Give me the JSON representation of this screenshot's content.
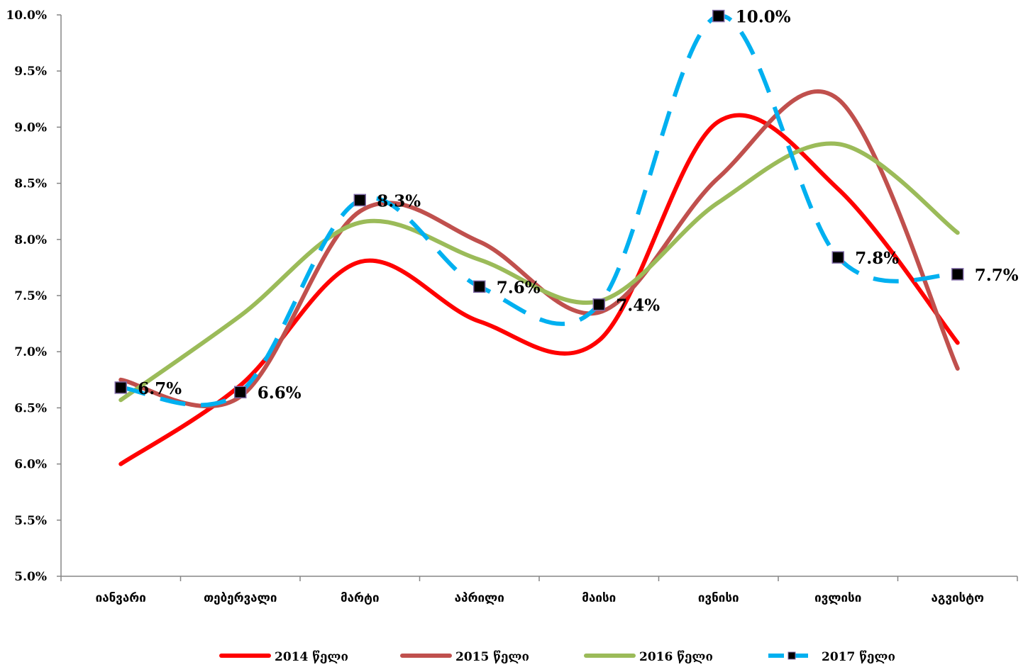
{
  "chart_data": {
    "type": "line",
    "title": "",
    "xlabel": "",
    "ylabel": "",
    "categories": [
      "იანვარი",
      "თებერვალი",
      "მარტი",
      "აპრილი",
      "მაისი",
      "ივნისი",
      "ივლისი",
      "აგვისტო"
    ],
    "ylim": [
      0.05,
      0.1
    ],
    "yticks": [
      "5.0%",
      "5.5%",
      "6.0%",
      "6.5%",
      "7.0%",
      "7.5%",
      "8.0%",
      "8.5%",
      "9.0%",
      "9.5%",
      "10.0%"
    ],
    "smoothed": true,
    "grid": false,
    "legend_position": "bottom",
    "series": [
      {
        "name": "2014 წელი",
        "color": "#ff0000",
        "style": "solid",
        "values": [
          0.06,
          0.067,
          0.078,
          0.0727,
          0.071,
          0.0905,
          0.0845,
          0.0708
        ]
      },
      {
        "name": "2015 წელი",
        "color": "#c0504d",
        "style": "solid",
        "values": [
          0.0675,
          0.066,
          0.0825,
          0.0798,
          0.0735,
          0.0855,
          0.0925,
          0.0685
        ]
      },
      {
        "name": "2016 წელი",
        "color": "#9bbb59",
        "style": "solid",
        "values": [
          0.0657,
          0.0732,
          0.0815,
          0.0782,
          0.0745,
          0.0833,
          0.0885,
          0.0806
        ]
      },
      {
        "name": "2017 წელი",
        "color": "#00b0f0",
        "style": "dashed",
        "marker": "square",
        "values": [
          0.0668,
          0.0664,
          0.0835,
          0.0758,
          0.0742,
          0.0999,
          0.0784,
          0.0769
        ],
        "data_labels": [
          "6.7%",
          "6.6%",
          "8.3%",
          "7.6%",
          "7.4%",
          "10.0%",
          "7.8%",
          "7.7%"
        ]
      }
    ]
  }
}
